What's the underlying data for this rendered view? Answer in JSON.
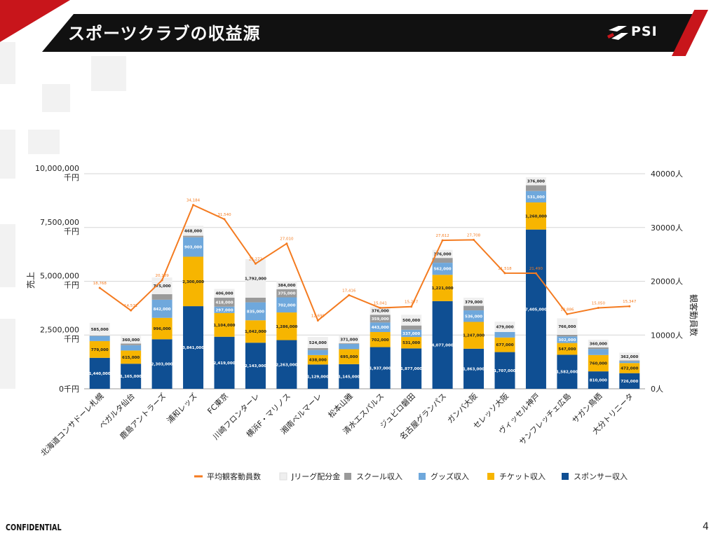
{
  "slide": {
    "title": "スポーツクラブの収益源",
    "logo_text": "PSI",
    "footer_left": "CONFIDENTIAL",
    "page_number": "4"
  },
  "colors": {
    "sponsor": "#0f4f93",
    "ticket": "#f7b500",
    "goods": "#6fa8dc",
    "school": "#9a9a9a",
    "jleague": "#efefef",
    "attendance": "#f47b20",
    "header": "#111111",
    "accent_red": "#c8151b"
  },
  "chart_data": {
    "type": "bar",
    "stacked": true,
    "ylabel": "売上",
    "y2label": "観客動員数",
    "ylim": [
      0,
      10000000
    ],
    "y2lim": [
      0,
      40000
    ],
    "y_ticks": [
      {
        "value": 0,
        "line1": "0千円",
        "line2": ""
      },
      {
        "value": 2500000,
        "line1": "2,500,000",
        "line2": "千円"
      },
      {
        "value": 5000000,
        "line1": "5,000,000",
        "line2": "千円"
      },
      {
        "value": 7500000,
        "line1": "7,500,000",
        "line2": "千円"
      },
      {
        "value": 10000000,
        "line1": "10,000,000",
        "line2": "千円"
      }
    ],
    "y2_ticks": [
      {
        "value": 0,
        "label": "0人"
      },
      {
        "value": 10000,
        "label": "10000人"
      },
      {
        "value": 20000,
        "label": "20000人"
      },
      {
        "value": 30000,
        "label": "30000人"
      },
      {
        "value": 40000,
        "label": "40000人"
      }
    ],
    "categories": [
      "北海道コンサドーレ札幌",
      "ベガルタ仙台",
      "鹿島アントラーズ",
      "浦和レッズ",
      "FC東京",
      "川崎フロンターレ",
      "横浜F・マリノス",
      "湘南ベルマーレ",
      "松本山雅",
      "清水エスパルス",
      "ジュビロ磐田",
      "名古屋グランパス",
      "ガンバ大阪",
      "セレッソ大阪",
      "ヴィッセル神戸",
      "サンフレッチェ広島",
      "サガン鳥栖",
      "大分トリニータ"
    ],
    "series": [
      {
        "name": "スポンサー収入",
        "key": "sponsor",
        "values": [
          1440000,
          1165000,
          2303000,
          3841000,
          2419000,
          2143000,
          2263000,
          1129000,
          1145000,
          1937000,
          1877000,
          4077000,
          1863000,
          1707000,
          7405000,
          1582000,
          810000,
          726000
        ],
        "labels": [
          "1,440,000",
          "1,165,000",
          "2,303,000",
          "3,841,000",
          "2,419,000",
          "2,143,000",
          "2,263,000",
          "1,129,000",
          "1,145,000",
          "1,937,000",
          "1,877,000",
          "4,077,000",
          "1,863,000",
          "1,707,000",
          "7,405,000",
          "1,582,000",
          "810,000",
          "726,000"
        ]
      },
      {
        "name": "チケット収入",
        "key": "ticket",
        "values": [
          779000,
          615000,
          996000,
          2300000,
          1104000,
          1042000,
          1286000,
          438000,
          695000,
          702000,
          531000,
          1221000,
          1247000,
          677000,
          1260000,
          547000,
          760000,
          472000
        ],
        "labels": [
          "779,000",
          "615,000",
          "996,000",
          "2,300,000",
          "1,104,000",
          "1,042,000",
          "1,286,000",
          "438,000",
          "695,000",
          "702,000",
          "531,000",
          "1,221,000",
          "1,247,000",
          "677,000",
          "1,260,000",
          "547,000",
          "760,000",
          "472,000"
        ]
      },
      {
        "name": "グッズ収入",
        "key": "goods",
        "values": [
          232000,
          246000,
          842000,
          903000,
          297000,
          835000,
          702000,
          236000,
          244000,
          443000,
          337000,
          562000,
          536000,
          258000,
          531000,
          302000,
          276000,
          80000
        ],
        "labels": [
          "232,000",
          "246,000",
          "842,000",
          "903,000",
          "297,000",
          "835,000",
          "702,000",
          "236,000",
          "244,000",
          "443,000",
          "337,000",
          "562,000",
          "536,000",
          "258,000",
          "531,000",
          "302,000",
          "276,000",
          "80,000"
        ]
      },
      {
        "name": "スクール収入",
        "key": "school",
        "values": [
          30000,
          77000,
          257000,
          72000,
          418000,
          216000,
          375000,
          87000,
          30000,
          359000,
          198000,
          225000,
          211000,
          0,
          266000,
          80000,
          76000,
          40000
        ],
        "labels": [
          "30,000",
          "77,000",
          "257,000",
          "72,000",
          "418,000",
          "216,000",
          "375,000",
          "87,000",
          "30,000",
          "359,000",
          "198,000",
          "225,000",
          "211,000",
          "",
          "266,000",
          "80,000",
          "76,000",
          "40,000"
        ]
      },
      {
        "name": "Jリーグ配分金",
        "key": "jleague",
        "values": [
          585000,
          360000,
          775000,
          468000,
          406000,
          1792000,
          384000,
          524000,
          371000,
          376000,
          500000,
          376000,
          379000,
          479000,
          376000,
          766000,
          360000,
          362000
        ],
        "labels": [
          "585,000",
          "360,000",
          "775,000",
          "468,000",
          "406,000",
          "1,792,000",
          "384,000",
          "524,000",
          "371,000",
          "376,000",
          "500,000",
          "376,000",
          "379,000",
          "479,000",
          "376,000",
          "766,000",
          "360,000",
          "362,000"
        ]
      }
    ],
    "line_series": {
      "name": "平均観客動員数",
      "key": "attendance",
      "axis": "y2",
      "values": [
        18768,
        14571,
        20189,
        34184,
        31540,
        23272,
        27010,
        12699,
        17416,
        15041,
        15277,
        27612,
        27708,
        21518,
        21490,
        13886,
        15050,
        15347
      ],
      "labels": [
        "18,768",
        "14,571",
        "20,189",
        "34,184",
        "31,540",
        "23,272",
        "27,010",
        "12,699",
        "17,416",
        "15,041",
        "15,277",
        "27,612",
        "27,708",
        "21,518",
        "21,490",
        "13,886",
        "15,050",
        "15,347"
      ]
    },
    "legend_order": [
      "平均観客動員数",
      "Jリーグ配分金",
      "スクール収入",
      "グッズ収入",
      "チケット収入",
      "スポンサー収入"
    ],
    "legend_position": "bottom",
    "grid": true
  }
}
